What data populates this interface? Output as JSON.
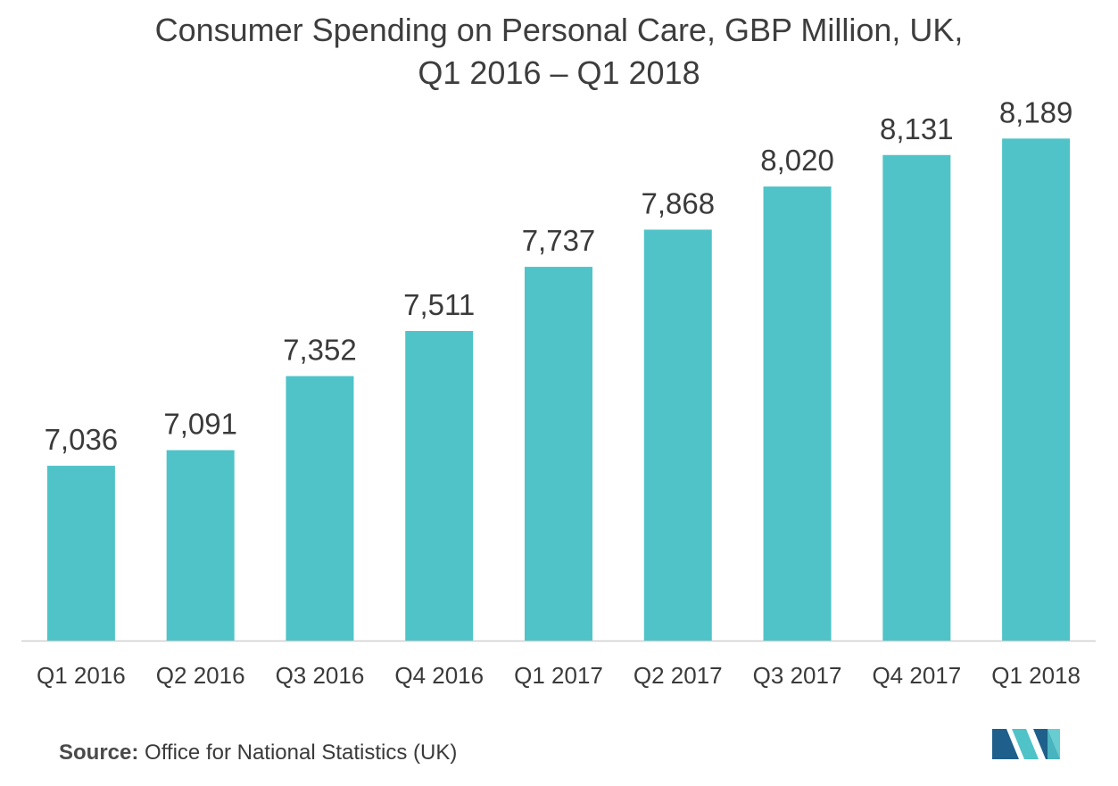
{
  "title": {
    "line1": "Consumer Spending on Personal Care, GBP Million, UK,",
    "line2": "Q1 2016 – Q1 2018"
  },
  "source": {
    "label": "Source:",
    "text": "Office for National Statistics (UK)"
  },
  "colors": {
    "bar": "#4fc3c8",
    "axis": "#cfcfcf",
    "text": "#3a3a3a",
    "logo_dark": "#1f5f8b",
    "logo_teal": "#4fc3c8"
  },
  "chart_data": {
    "type": "bar",
    "title": "Consumer Spending on Personal Care, GBP Million, UK, Q1 2016 – Q1 2018",
    "xlabel": "",
    "ylabel": "",
    "categories": [
      "Q1 2016",
      "Q2 2016",
      "Q3 2016",
      "Q4 2016",
      "Q1 2017",
      "Q2 2017",
      "Q3 2017",
      "Q4 2017",
      "Q1 2018"
    ],
    "values": [
      7036,
      7091,
      7352,
      7511,
      7737,
      7868,
      8020,
      8131,
      8189
    ],
    "value_labels": [
      "7,036",
      "7,091",
      "7,352",
      "7,511",
      "7,737",
      "7,868",
      "8,020",
      "8,131",
      "8,189"
    ],
    "ylim": [
      6420,
      8300
    ],
    "grid": false,
    "legend": "none"
  }
}
